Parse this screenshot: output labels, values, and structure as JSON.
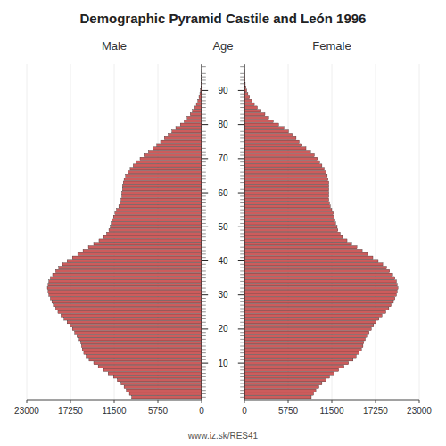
{
  "chart_data": {
    "type": "pyramid",
    "orientation": "horizontal",
    "title": "Demographic Pyramid Castile and León 1996",
    "y_label": "Age",
    "annotations": [
      "www.iz.sk/RES41"
    ],
    "color": "#cd5c5c",
    "y": [
      0,
      1,
      2,
      3,
      4,
      5,
      6,
      7,
      8,
      9,
      10,
      11,
      12,
      13,
      14,
      15,
      16,
      17,
      18,
      19,
      20,
      21,
      22,
      23,
      24,
      25,
      26,
      27,
      28,
      29,
      30,
      31,
      32,
      33,
      34,
      35,
      36,
      37,
      38,
      39,
      40,
      41,
      42,
      43,
      44,
      45,
      46,
      47,
      48,
      49,
      50,
      51,
      52,
      53,
      54,
      55,
      56,
      57,
      58,
      59,
      60,
      61,
      62,
      63,
      64,
      65,
      66,
      67,
      68,
      69,
      70,
      71,
      72,
      73,
      74,
      75,
      76,
      77,
      78,
      79,
      80,
      81,
      82,
      83,
      84,
      85,
      86,
      87,
      88,
      89,
      90,
      91,
      92,
      93,
      94,
      95,
      96,
      97
    ],
    "ylim": [
      -0.7,
      97.7
    ],
    "yticks": [
      10,
      20,
      30,
      40,
      50,
      60,
      70,
      80,
      90
    ],
    "xlim": [
      0,
      23000
    ],
    "xticks": [
      0,
      5750,
      11500,
      17250,
      23000
    ],
    "series": [
      {
        "name": "Male",
        "values": [
          9200,
          9500,
          9900,
          10200,
          10600,
          11100,
          11600,
          12300,
          12900,
          13600,
          14200,
          14800,
          15200,
          15500,
          15700,
          15800,
          15900,
          16100,
          16400,
          16700,
          17000,
          17300,
          17700,
          18100,
          18500,
          18900,
          19200,
          19500,
          19700,
          19900,
          20100,
          20200,
          20300,
          20200,
          20100,
          19900,
          19600,
          19200,
          18800,
          18300,
          17700,
          17000,
          16300,
          15600,
          14900,
          14200,
          13500,
          12900,
          12500,
          12200,
          12000,
          11900,
          11800,
          11600,
          11400,
          11200,
          10900,
          10700,
          10600,
          10500,
          10500,
          10400,
          10400,
          10300,
          10200,
          10000,
          9700,
          9400,
          9000,
          8600,
          8100,
          7600,
          7000,
          6400,
          5900,
          5400,
          4900,
          4400,
          3900,
          3400,
          2800,
          2300,
          1900,
          1500,
          1200,
          900,
          700,
          500,
          350,
          230,
          150,
          95,
          60,
          38,
          23,
          14,
          8,
          4
        ]
      },
      {
        "name": "Female",
        "values": [
          8800,
          9100,
          9400,
          9800,
          10200,
          10700,
          11200,
          11800,
          12400,
          13100,
          13700,
          14300,
          14700,
          15100,
          15400,
          15600,
          15700,
          15900,
          16100,
          16400,
          16700,
          17000,
          17300,
          17700,
          18100,
          18600,
          19000,
          19300,
          19600,
          19800,
          20000,
          20100,
          20200,
          20100,
          20000,
          19800,
          19500,
          19100,
          18700,
          18200,
          17600,
          16900,
          16200,
          15500,
          14800,
          14100,
          13500,
          12900,
          12600,
          12300,
          12200,
          12000,
          11900,
          11800,
          11700,
          11500,
          11300,
          11200,
          11100,
          11100,
          11100,
          11100,
          11100,
          11100,
          11000,
          10900,
          10700,
          10500,
          10200,
          9900,
          9600,
          9200,
          8700,
          8100,
          7600,
          7200,
          6800,
          6300,
          5800,
          5200,
          4500,
          3800,
          3200,
          2700,
          2200,
          1700,
          1300,
          950,
          680,
          460,
          300,
          190,
          115,
          70,
          40,
          24,
          14,
          8
        ]
      }
    ]
  }
}
